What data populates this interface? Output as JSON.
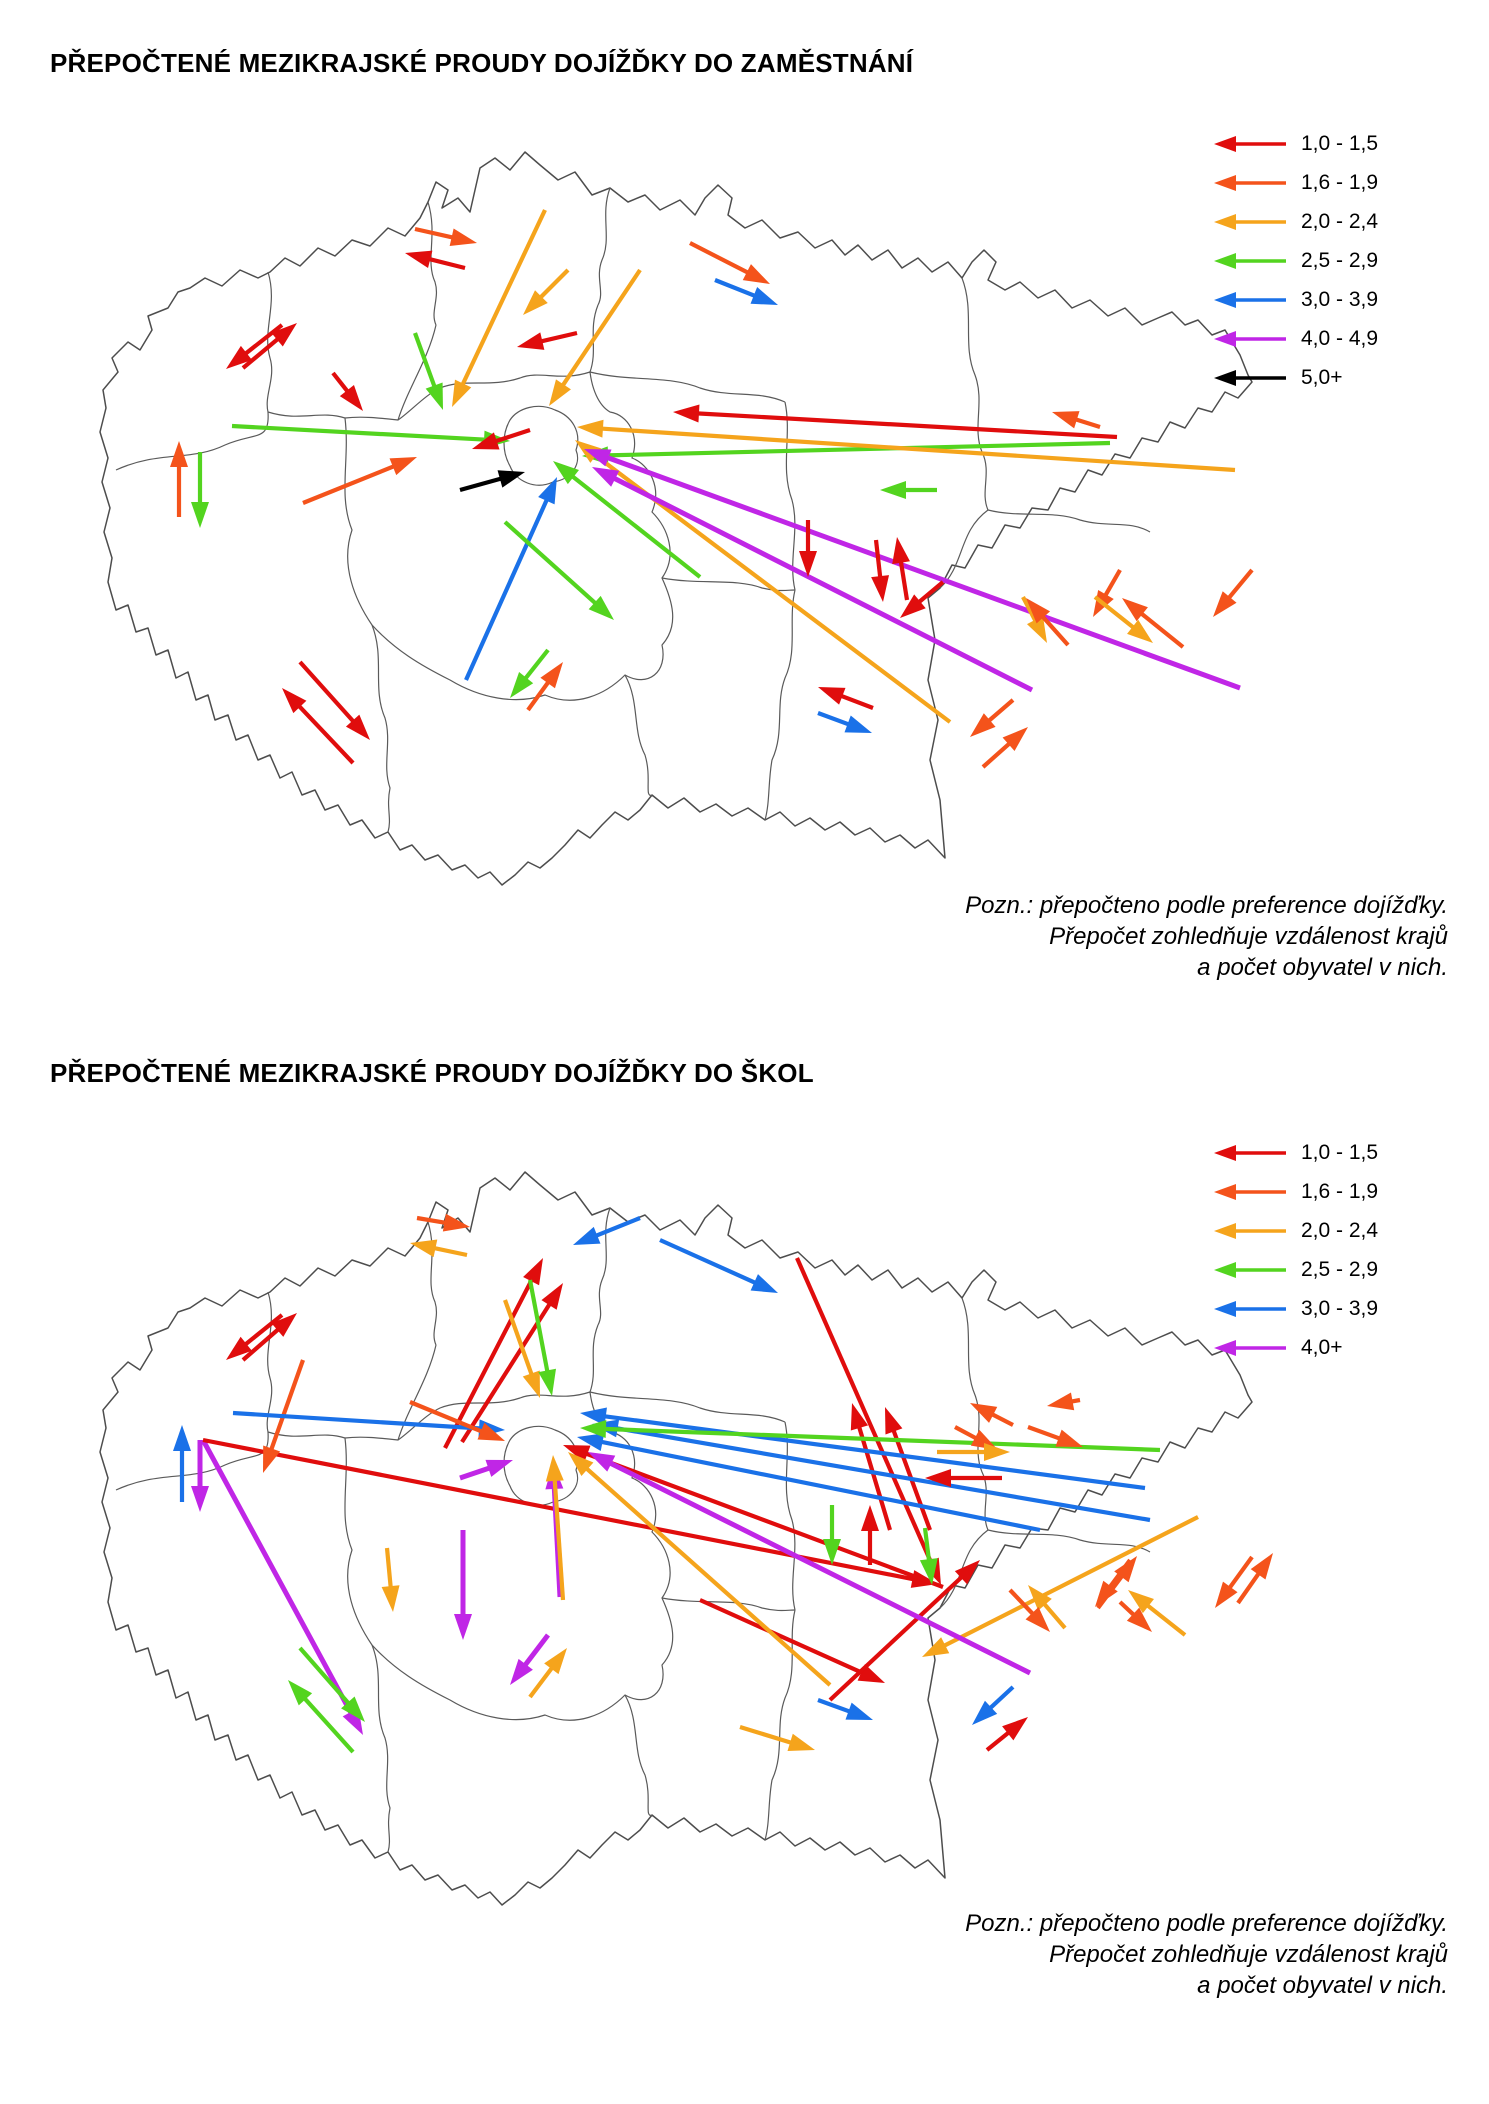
{
  "page": {
    "background": "#ffffff"
  },
  "maps": [
    {
      "title": "PŘEPOČTENÉ MEZIKRAJSKÉ PROUDY DOJÍŽĎKY DO ZAMĚSTNÁNÍ",
      "note_lines": [
        "Pozn.: přepočteno podle preference dojížďky.",
        "Přepočet zohledňuje vzdálenost krajů",
        "a počet obyvatel v nich."
      ],
      "legend": [
        {
          "label": "1,0 - 1,5",
          "color": "#e00d0d"
        },
        {
          "label": "1,6 - 1,9",
          "color": "#f4531b"
        },
        {
          "label": "2,0 - 2,4",
          "color": "#f5a41c"
        },
        {
          "label": "2,5 - 2,9",
          "color": "#53d41f"
        },
        {
          "label": "3,0 - 3,9",
          "color": "#1a71e8"
        },
        {
          "label": "4,0 - 4,9",
          "color": "#c026e6"
        },
        {
          "label": "5,0+",
          "color": "#000000"
        }
      ],
      "arrows": [
        [
          415,
          109,
          477,
          123,
          1
        ],
        [
          465,
          148,
          405,
          133,
          0
        ],
        [
          243,
          248,
          297,
          203,
          0
        ],
        [
          282,
          205,
          226,
          249,
          0
        ],
        [
          179,
          397,
          179,
          321,
          1
        ],
        [
          200,
          332,
          200,
          408,
          3
        ],
        [
          333,
          253,
          363,
          291,
          0
        ],
        [
          232,
          306,
          510,
          321,
          3
        ],
        [
          530,
          310,
          472,
          329,
          0
        ],
        [
          303,
          383,
          417,
          337,
          1
        ],
        [
          460,
          370,
          525,
          352,
          6
        ],
        [
          415,
          213,
          443,
          290,
          3
        ],
        [
          545,
          90,
          452,
          287,
          2
        ],
        [
          690,
          123,
          770,
          164,
          1
        ],
        [
          715,
          160,
          778,
          185,
          4
        ],
        [
          568,
          150,
          523,
          195,
          2
        ],
        [
          577,
          213,
          517,
          227,
          0
        ],
        [
          640,
          150,
          549,
          286,
          2
        ],
        [
          1117,
          317,
          673,
          292,
          0
        ],
        [
          1110,
          323,
          582,
          336,
          3
        ],
        [
          1235,
          350,
          577,
          307,
          2
        ],
        [
          950,
          602,
          575,
          320,
          2
        ],
        [
          1240,
          568,
          584,
          329,
          5
        ],
        [
          1032,
          570,
          592,
          347,
          5
        ],
        [
          700,
          457,
          553,
          341,
          3
        ],
        [
          466,
          560,
          557,
          357,
          4
        ],
        [
          505,
          402,
          614,
          500,
          3
        ],
        [
          808,
          400,
          808,
          457,
          0
        ],
        [
          907,
          480,
          897,
          417,
          0
        ],
        [
          876,
          420,
          883,
          482,
          0
        ],
        [
          943,
          462,
          900,
          498,
          0
        ],
        [
          873,
          588,
          818,
          567,
          0
        ],
        [
          818,
          593,
          872,
          613,
          4
        ],
        [
          1023,
          477,
          1047,
          523,
          2
        ],
        [
          1068,
          525,
          1026,
          478,
          1
        ],
        [
          1120,
          450,
          1093,
          497,
          1
        ],
        [
          1013,
          580,
          970,
          617,
          1
        ],
        [
          983,
          647,
          1028,
          607,
          1
        ],
        [
          1100,
          307,
          1052,
          292,
          1
        ],
        [
          1095,
          477,
          1153,
          523,
          2
        ],
        [
          1183,
          527,
          1122,
          478,
          1
        ],
        [
          1252,
          450,
          1213,
          497,
          1
        ],
        [
          300,
          542,
          370,
          620,
          0
        ],
        [
          353,
          643,
          282,
          568,
          0
        ],
        [
          937,
          370,
          880,
          370,
          3
        ],
        [
          548,
          530,
          510,
          578,
          3
        ],
        [
          528,
          590,
          563,
          542,
          1
        ]
      ]
    },
    {
      "title": "PŘEPOČTENÉ MEZIKRAJSKÉ PROUDY DOJÍŽĎKY DO ŠKOL",
      "note_lines": [
        "Pozn.: přepočteno podle preference dojížďky.",
        "Přepočet zohledňuje vzdálenost krajů",
        "a počet obyvatel v nich."
      ],
      "legend": [
        {
          "label": "1,0 - 1,5",
          "color": "#e00d0d"
        },
        {
          "label": "1,6 - 1,9",
          "color": "#f4531b"
        },
        {
          "label": "2,0 - 2,4",
          "color": "#f5a41c"
        },
        {
          "label": "2,5 - 2,9",
          "color": "#53d41f"
        },
        {
          "label": "3,0 - 3,9",
          "color": "#1a71e8"
        },
        {
          "label": "4,0+",
          "color": "#c026e6"
        }
      ],
      "arrows": [
        [
          417,
          78,
          470,
          87,
          1
        ],
        [
          467,
          115,
          410,
          103,
          2
        ],
        [
          243,
          220,
          297,
          173,
          0
        ],
        [
          282,
          175,
          226,
          220,
          0
        ],
        [
          182,
          362,
          182,
          285,
          4
        ],
        [
          200,
          300,
          200,
          372,
          5
        ],
        [
          203,
          300,
          363,
          595,
          5
        ],
        [
          203,
          300,
          938,
          444,
          0
        ],
        [
          303,
          220,
          263,
          333,
          1
        ],
        [
          300,
          508,
          365,
          582,
          3
        ],
        [
          353,
          612,
          288,
          540,
          3
        ],
        [
          387,
          408,
          393,
          472,
          2
        ],
        [
          445,
          308,
          543,
          118,
          0
        ],
        [
          462,
          302,
          563,
          143,
          0
        ],
        [
          797,
          118,
          941,
          445,
          0
        ],
        [
          890,
          390,
          852,
          263,
          0
        ],
        [
          930,
          390,
          885,
          267,
          0
        ],
        [
          640,
          78,
          573,
          105,
          4
        ],
        [
          660,
          100,
          778,
          153,
          4
        ],
        [
          505,
          160,
          540,
          258,
          2
        ],
        [
          530,
          140,
          552,
          256,
          3
        ],
        [
          233,
          273,
          505,
          290,
          4
        ],
        [
          410,
          262,
          505,
          301,
          1
        ],
        [
          460,
          338,
          513,
          320,
          5
        ],
        [
          560,
          457,
          553,
          323,
          5
        ],
        [
          463,
          390,
          463,
          500,
          5
        ],
        [
          563,
          460,
          553,
          315,
          2
        ],
        [
          943,
          447,
          563,
          305,
          0
        ],
        [
          1198,
          377,
          922,
          517,
          2
        ],
        [
          740,
          587,
          815,
          610,
          2
        ],
        [
          530,
          557,
          567,
          508,
          2
        ],
        [
          548,
          495,
          510,
          545,
          5
        ],
        [
          1145,
          348,
          580,
          273,
          4
        ],
        [
          1150,
          380,
          592,
          284,
          4
        ],
        [
          1040,
          390,
          577,
          297,
          4
        ],
        [
          1160,
          310,
          580,
          288,
          3
        ],
        [
          1013,
          285,
          970,
          263,
          1
        ],
        [
          955,
          287,
          998,
          310,
          1
        ],
        [
          937,
          312,
          1010,
          312,
          2
        ],
        [
          1002,
          338,
          925,
          338,
          0
        ],
        [
          870,
          425,
          870,
          365,
          0
        ],
        [
          832,
          365,
          832,
          425,
          3
        ],
        [
          925,
          388,
          932,
          445,
          3
        ],
        [
          700,
          460,
          885,
          543,
          0
        ],
        [
          830,
          560,
          980,
          420,
          0
        ],
        [
          818,
          560,
          873,
          580,
          4
        ],
        [
          1013,
          547,
          972,
          585,
          4
        ],
        [
          987,
          610,
          1028,
          577,
          0
        ],
        [
          1028,
          287,
          1083,
          307,
          1
        ],
        [
          1080,
          260,
          1047,
          266,
          1
        ],
        [
          1252,
          417,
          1215,
          468,
          1
        ],
        [
          1238,
          463,
          1273,
          413,
          1
        ],
        [
          1185,
          495,
          1128,
          450,
          2
        ],
        [
          1120,
          462,
          1152,
          492,
          1
        ],
        [
          1065,
          488,
          1028,
          445,
          2
        ],
        [
          1010,
          450,
          1050,
          492,
          1
        ],
        [
          1098,
          468,
          1137,
          416,
          1
        ],
        [
          1130,
          420,
          1095,
          467,
          1
        ],
        [
          1030,
          533,
          588,
          312,
          5
        ],
        [
          830,
          545,
          568,
          312,
          2
        ]
      ]
    }
  ]
}
